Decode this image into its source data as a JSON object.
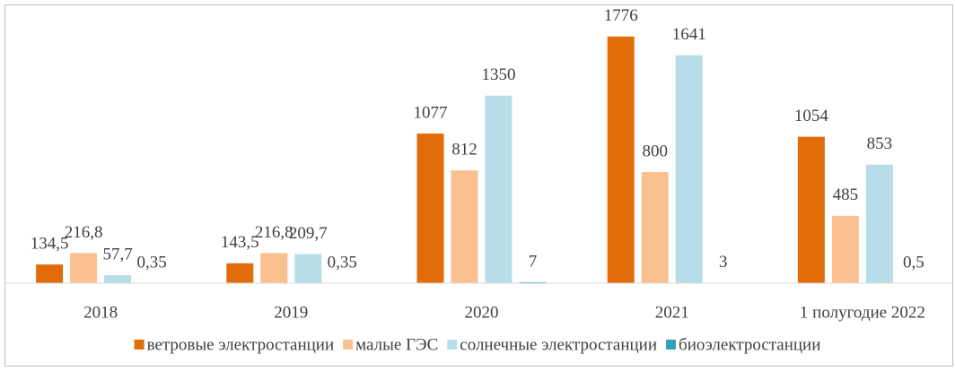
{
  "chart_data": {
    "type": "bar",
    "categories": [
      "2018",
      "2019",
      "2020",
      "2021",
      "1 полугодие 2022"
    ],
    "series": [
      {
        "name": "ветровые электростанции",
        "color": "#e36c0a",
        "values": [
          134.5,
          143.5,
          1077,
          1776,
          1054
        ],
        "value_labels": [
          "134,5",
          "143,5",
          "1077",
          "1776",
          "1054"
        ]
      },
      {
        "name": "малые ГЭС",
        "color": "#fac090",
        "values": [
          216.8,
          216.8,
          812,
          800,
          485
        ],
        "value_labels": [
          "216,8",
          "216,8",
          "812",
          "800",
          "485"
        ]
      },
      {
        "name": "солнечные электростанции",
        "color": "#b7dee8",
        "values": [
          57.7,
          209.7,
          1350,
          1641,
          853
        ],
        "value_labels": [
          "57,7",
          "209,7",
          "1350",
          "1641",
          "853"
        ]
      },
      {
        "name": "биоэлектростанции",
        "color": "#31a2b8",
        "values": [
          0.35,
          0.35,
          7,
          3,
          0.5
        ],
        "value_labels": [
          "0,35",
          "0,35",
          "7",
          "3",
          "0,5"
        ]
      }
    ],
    "ylim": [
      0,
      2000
    ],
    "legend": "bottom"
  }
}
